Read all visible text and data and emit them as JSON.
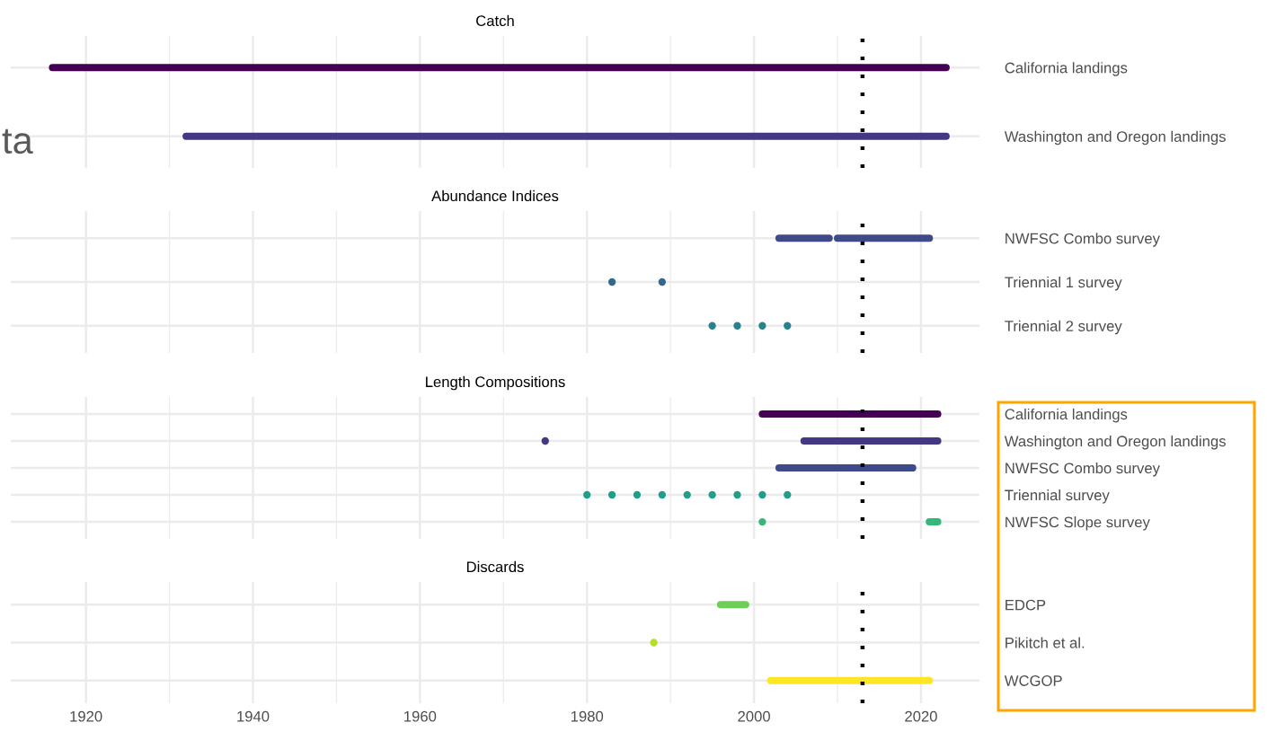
{
  "chart_data": [
    {
      "type": "bar",
      "orientation": "horizontal",
      "title": "Catch",
      "annotations": [
        "ta"
      ],
      "xlim": [
        1911,
        2027
      ],
      "xticks": [
        1920,
        1940,
        1960,
        1980,
        2000,
        2020
      ],
      "grid": true,
      "tick_labels": "y",
      "categories": [
        "California landings",
        "Washington and Oregon landings"
      ],
      "ref_lines": [
        {
          "axis": "x",
          "value": 2013,
          "color": "#000000",
          "line_style": "dotted"
        }
      ],
      "series": [
        {
          "base": [
            1916,
            1932
          ],
          "values": [
            107,
            91
          ],
          "colors": [
            "#440154",
            "#453781"
          ]
        }
      ]
    },
    {
      "type": "bar",
      "orientation": "horizontal",
      "title": "Abundance Indices",
      "xlim": [
        1911,
        2027
      ],
      "xticks": [
        1920,
        1940,
        1960,
        1980,
        2000,
        2020
      ],
      "grid": true,
      "tick_labels": "y",
      "marker": "circle",
      "categories": [
        "NWFSC Combo survey",
        "Triennial 1 survey",
        "Triennial 2 survey"
      ],
      "ref_lines": [
        {
          "axis": "x",
          "value": 2013,
          "color": "#000000",
          "line_style": "dotted"
        }
      ],
      "series": [
        {
          "base": [
            2003,
            null,
            null
          ],
          "values": [
            6,
            null,
            null
          ],
          "colors": [
            "#3e4a89",
            null,
            null
          ]
        },
        {
          "base": [
            2010,
            null,
            null
          ],
          "values": [
            11,
            null,
            null
          ],
          "colors": [
            "#3e4a89",
            null,
            null
          ]
        },
        {
          "type": "scatter",
          "colors": [
            null,
            "#31688e",
            "#26828e"
          ],
          "values": [
            null,
            1983,
            1995
          ]
        },
        {
          "type": "scatter",
          "colors": [
            null,
            "#31688e",
            "#26828e"
          ],
          "values": [
            null,
            1989,
            1998
          ]
        },
        {
          "type": "scatter",
          "colors": [
            null,
            null,
            "#26828e"
          ],
          "values": [
            null,
            null,
            2001
          ]
        },
        {
          "type": "scatter",
          "colors": [
            null,
            null,
            "#26828e"
          ],
          "values": [
            null,
            null,
            2004
          ]
        }
      ]
    },
    {
      "type": "bar",
      "orientation": "horizontal",
      "title": "Length Compositions",
      "xlim": [
        1911,
        2027
      ],
      "xticks": [
        1920,
        1940,
        1960,
        1980,
        2000,
        2020
      ],
      "grid": true,
      "tick_labels": "y",
      "marker": "circle",
      "categories": [
        "California landings",
        "Washington and Oregon landings",
        "NWFSC Combo survey",
        "Triennial survey",
        "NWFSC Slope survey"
      ],
      "ref_lines": [
        {
          "axis": "x",
          "value": 2013,
          "color": "#000000",
          "line_style": "dotted"
        }
      ],
      "series": [
        {
          "base": [
            2001,
            2006,
            2003,
            null,
            2021
          ],
          "values": [
            21,
            16,
            16,
            null,
            1
          ],
          "colors": [
            "#440154",
            "#453781",
            "#3e4a89",
            null,
            "#35b779"
          ]
        },
        {
          "type": "scatter",
          "colors": [
            null,
            "#453781",
            null,
            "#1f9e89",
            "#35b779"
          ],
          "values": [
            null,
            1975,
            null,
            1980,
            2001
          ]
        },
        {
          "type": "scatter",
          "colors": [
            null,
            null,
            null,
            "#1f9e89",
            null
          ],
          "values": [
            null,
            null,
            null,
            1983,
            null
          ]
        },
        {
          "type": "scatter",
          "colors": [
            null,
            null,
            null,
            "#1f9e89",
            null
          ],
          "values": [
            null,
            null,
            null,
            1986,
            null
          ]
        },
        {
          "type": "scatter",
          "colors": [
            null,
            null,
            null,
            "#1f9e89",
            null
          ],
          "values": [
            null,
            null,
            null,
            1989,
            null
          ]
        },
        {
          "type": "scatter",
          "colors": [
            null,
            null,
            null,
            "#1f9e89",
            null
          ],
          "values": [
            null,
            null,
            null,
            1992,
            null
          ]
        },
        {
          "type": "scatter",
          "colors": [
            null,
            null,
            null,
            "#1f9e89",
            null
          ],
          "values": [
            null,
            null,
            null,
            1995,
            null
          ]
        },
        {
          "type": "scatter",
          "colors": [
            null,
            null,
            null,
            "#1f9e89",
            null
          ],
          "values": [
            null,
            null,
            null,
            1998,
            null
          ]
        },
        {
          "type": "scatter",
          "colors": [
            null,
            null,
            null,
            "#1f9e89",
            null
          ],
          "values": [
            null,
            null,
            null,
            2001,
            null
          ]
        },
        {
          "type": "scatter",
          "colors": [
            null,
            null,
            null,
            "#1f9e89",
            null
          ],
          "values": [
            null,
            null,
            null,
            2004,
            null
          ]
        }
      ]
    },
    {
      "type": "bar",
      "orientation": "horizontal",
      "title": "Discards",
      "xlim": [
        1911,
        2027
      ],
      "xticks": [
        1920,
        1940,
        1960,
        1980,
        2000,
        2020
      ],
      "grid": true,
      "marker": "circle",
      "categories": [
        "EDCP",
        "Pikitch et al.",
        "WCGOP"
      ],
      "ref_lines": [
        {
          "axis": "x",
          "value": 2013,
          "color": "#000000",
          "line_style": "dotted"
        }
      ],
      "series": [
        {
          "base": [
            1996,
            null,
            2002
          ],
          "values": [
            3,
            null,
            19
          ],
          "colors": [
            "#6ece58",
            null,
            "#fde725"
          ]
        },
        {
          "type": "scatter",
          "colors": [
            null,
            "#b5de2b",
            null
          ],
          "values": [
            null,
            1988,
            null
          ]
        }
      ]
    }
  ]
}
